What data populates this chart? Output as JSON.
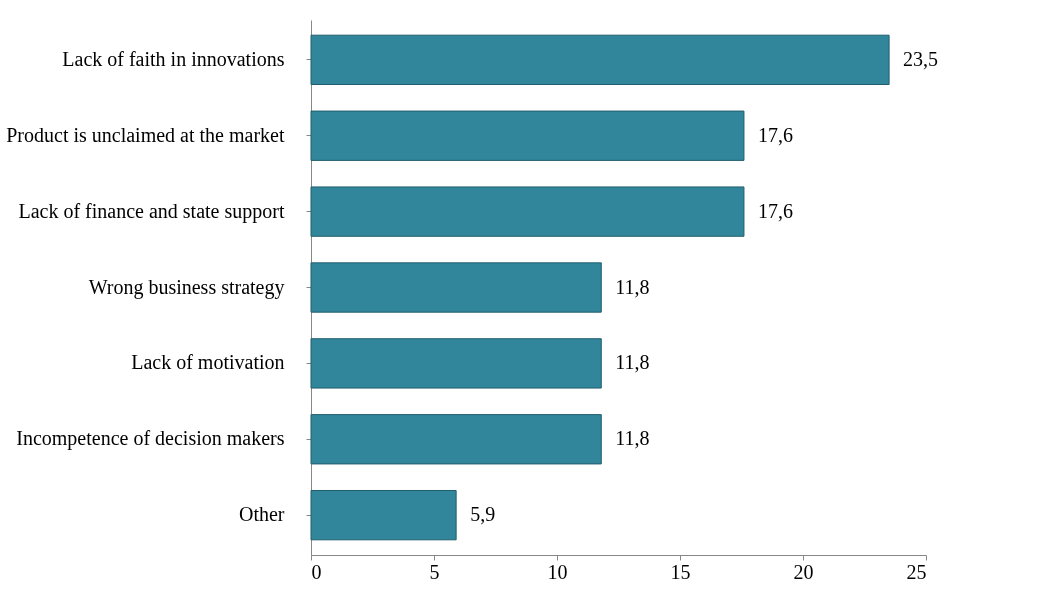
{
  "chart_data": {
    "type": "bar",
    "orientation": "horizontal",
    "categories": [
      "Lack of faith in innovations",
      "Product is unclaimed at the market",
      "Lack of finance and state support",
      "Wrong business strategy",
      "Lack of motivation",
      "Incompetence of decision makers",
      "Other"
    ],
    "values": [
      23.5,
      17.6,
      17.6,
      11.8,
      11.8,
      11.8,
      5.9
    ],
    "value_labels": [
      "23,5",
      "17,6",
      "17,6",
      "11,8",
      "11,8",
      "11,8",
      "5,9"
    ],
    "color": "#31869b",
    "xlim": [
      0,
      25
    ],
    "xticks": [
      0,
      5,
      10,
      15,
      20,
      25
    ],
    "grid": false
  }
}
